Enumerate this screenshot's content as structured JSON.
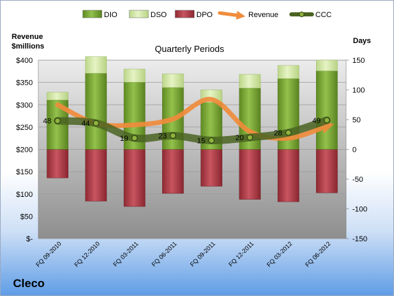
{
  "company": "Cleco",
  "chart_data": {
    "type": "bar",
    "title": "Quarterly Periods",
    "ylabel_left": "Revenue\n$millions",
    "ylabel_right": "Days",
    "categories": [
      "FQ 09-2010",
      "FQ 12-2010",
      "FQ 03-2011",
      "FQ 06-2011",
      "FQ 09-2011",
      "FQ 12-2011",
      "FQ 03-2012",
      "FQ 06-2012"
    ],
    "left_axis": {
      "min": 0,
      "max": 400,
      "step": 50,
      "tick_labels": [
        "$-",
        "$50",
        "$100",
        "$150",
        "$200",
        "$250",
        "$300",
        "$350",
        "$400"
      ]
    },
    "right_axis": {
      "min": -150,
      "max": 150,
      "step": 50,
      "tick_labels": [
        "-150",
        "-100",
        "-50",
        "0",
        "50",
        "100",
        "150"
      ]
    },
    "series": [
      {
        "name": "DIO",
        "axis": "right",
        "values": [
          83,
          128,
          113,
          104,
          79,
          103,
          119,
          132
        ]
      },
      {
        "name": "DSO",
        "axis": "right",
        "values": [
          13,
          28,
          22,
          23,
          21,
          23,
          22,
          18
        ]
      },
      {
        "name": "DPO",
        "axis": "right",
        "values": [
          -48,
          -87,
          -96,
          -74,
          -62,
          -84,
          -88,
          -73
        ]
      },
      {
        "name": "Revenue",
        "axis": "left",
        "values": [
          300,
          258,
          255,
          268,
          312,
          240,
          225,
          252
        ]
      },
      {
        "name": "CCC",
        "axis": "right",
        "values": [
          48,
          44,
          19,
          23,
          15,
          20,
          28,
          49
        ]
      }
    ],
    "ccc_labels": [
      "48",
      "44",
      "19",
      "23",
      "15",
      "20",
      "28",
      "49"
    ],
    "legend": {
      "position": "top",
      "entries": [
        "DIO",
        "DSO",
        "DPO",
        "Revenue",
        "CCC"
      ]
    },
    "colors": {
      "DIO": "#7ea83c",
      "DSO": "#d6e9a8",
      "DPO": "#b0404a",
      "Revenue": "#f08c3c",
      "CCC": "#546e2a",
      "plot_top": "#ececec",
      "plot_bottom": "#8e8e8e"
    },
    "grid": true
  }
}
